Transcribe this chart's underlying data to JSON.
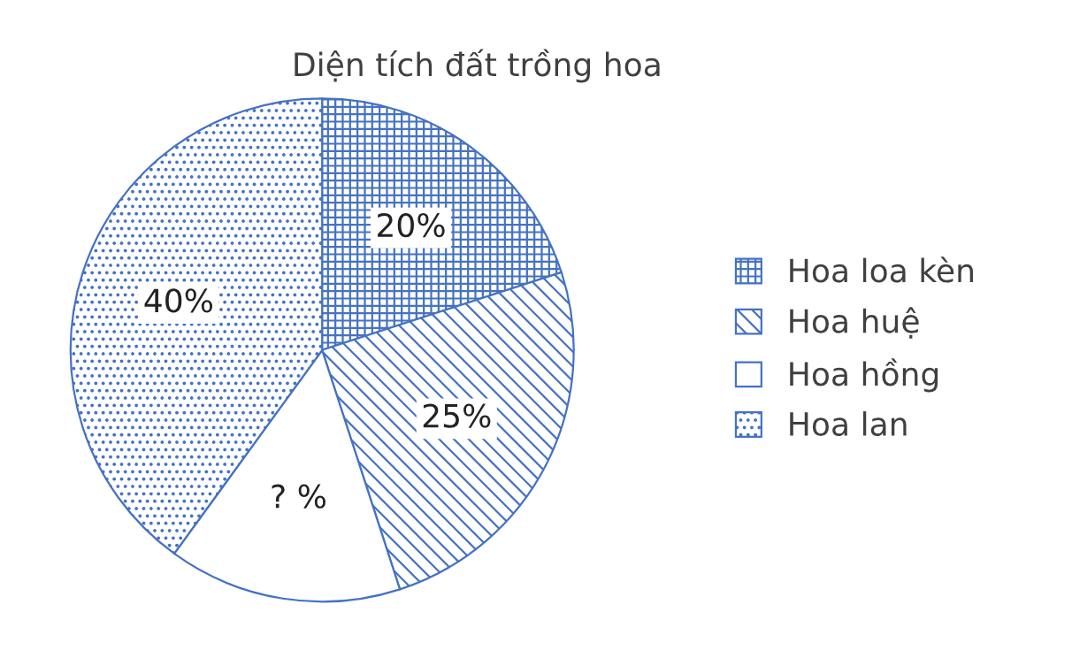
{
  "chart_data": {
    "type": "pie",
    "title": "Diện tích đất trồng hoa",
    "categories": [
      "Hoa loa kèn",
      "Hoa huệ",
      "Hoa hồng",
      "Hoa lan"
    ],
    "values": [
      20,
      25,
      15,
      40
    ],
    "value_labels": [
      "20%",
      "25%",
      "? %",
      "40%"
    ],
    "colors": [
      "#4472c4",
      "#4472c4",
      "#4472c4",
      "#4472c4"
    ],
    "legend": "right"
  }
}
